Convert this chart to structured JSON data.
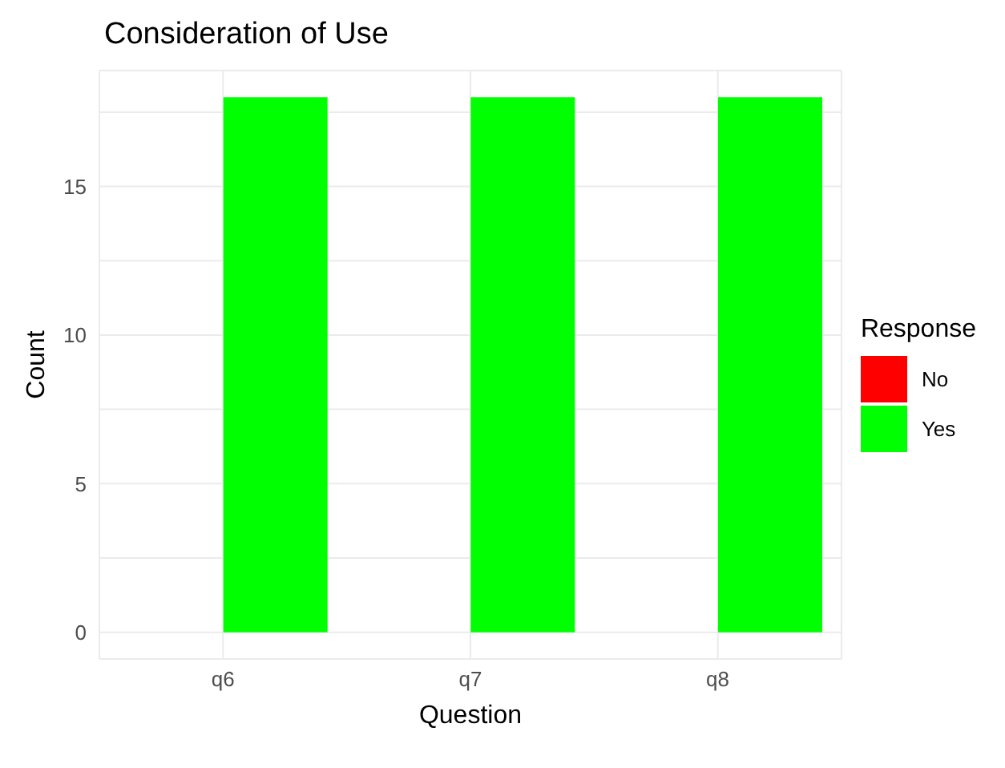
{
  "chart_data": {
    "type": "bar",
    "title": "Consideration of Use",
    "xlabel": "Question",
    "ylabel": "Count",
    "legend_title": "Response",
    "categories": [
      "q6",
      "q7",
      "q8"
    ],
    "series": [
      {
        "name": "No",
        "color": "#ff0000",
        "values": [
          0,
          0,
          0
        ]
      },
      {
        "name": "Yes",
        "color": "#00ff00",
        "values": [
          18,
          18,
          18
        ]
      }
    ],
    "ylim": [
      -0.9,
      18.9
    ],
    "yticks": [
      0,
      {
        "value": 2.5,
        "label": null
      },
      5,
      {
        "value": 7.5,
        "label": null
      },
      10,
      {
        "value": 12.5,
        "label": null
      },
      15,
      {
        "value": 17.5,
        "label": null
      }
    ],
    "grid": true,
    "legend": "right"
  }
}
